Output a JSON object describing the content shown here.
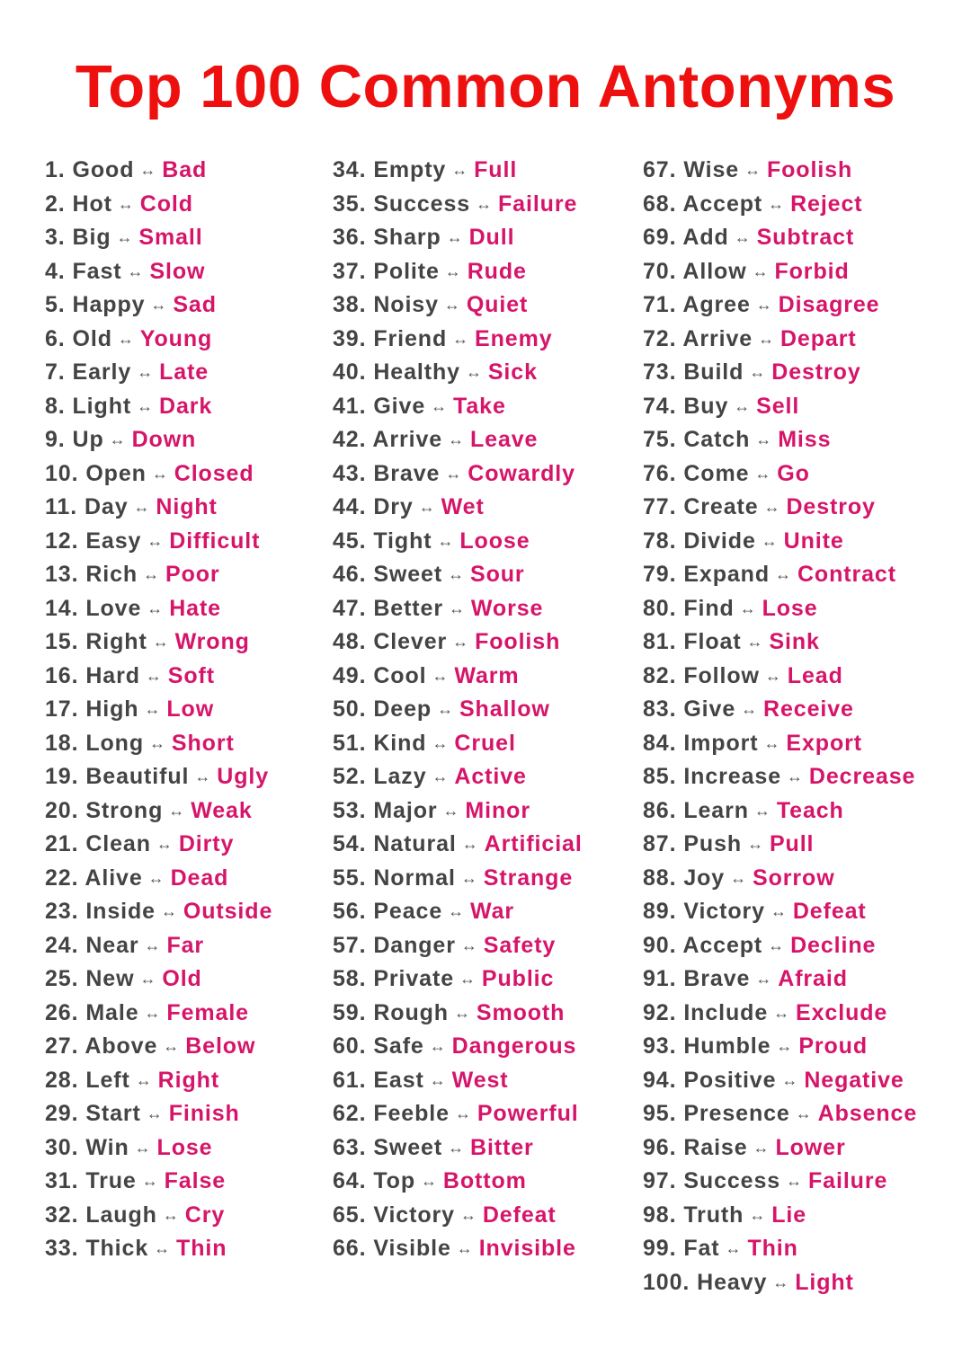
{
  "title": "Top 100 Common Antonyms",
  "colors": {
    "title": "#ee0f0f",
    "word": "#444444",
    "opposite": "#d6156a"
  },
  "separator": "↔",
  "columns": [
    [
      [
        "1.",
        "Good",
        "Bad"
      ],
      [
        "2.",
        "Hot",
        "Cold"
      ],
      [
        "3.",
        "Big",
        "Small"
      ],
      [
        "4.",
        "Fast",
        "Slow"
      ],
      [
        "5.",
        "Happy",
        "Sad"
      ],
      [
        "6.",
        "Old",
        "Young"
      ],
      [
        "7.",
        "Early",
        "Late"
      ],
      [
        "8.",
        "Light",
        "Dark"
      ],
      [
        "9.",
        "Up",
        "Down"
      ],
      [
        "10.",
        "Open",
        "Closed"
      ],
      [
        "11.",
        "Day",
        "Night"
      ],
      [
        "12.",
        "Easy",
        "Difficult"
      ],
      [
        "13.",
        "Rich",
        "Poor"
      ],
      [
        "14.",
        "Love",
        "Hate"
      ],
      [
        "15.",
        "Right",
        "Wrong"
      ],
      [
        "16.",
        "Hard",
        "Soft"
      ],
      [
        "17.",
        "High",
        "Low"
      ],
      [
        "18.",
        "Long",
        "Short"
      ],
      [
        "19.",
        "Beautiful",
        "Ugly"
      ],
      [
        "20.",
        "Strong",
        "Weak"
      ],
      [
        "21.",
        "Clean",
        "Dirty"
      ],
      [
        "22.",
        "Alive",
        "Dead"
      ],
      [
        "23.",
        "Inside",
        "Outside"
      ],
      [
        "24.",
        "Near",
        "Far"
      ],
      [
        "25.",
        "New",
        "Old"
      ],
      [
        "26.",
        "Male",
        "Female"
      ],
      [
        "27.",
        "Above",
        "Below"
      ],
      [
        "28.",
        "Left",
        "Right"
      ],
      [
        "29.",
        "Start",
        "Finish"
      ],
      [
        "30.",
        "Win",
        "Lose"
      ],
      [
        "31.",
        "True",
        "False"
      ],
      [
        "32.",
        "Laugh",
        "Cry"
      ],
      [
        "33.",
        "Thick",
        "Thin"
      ]
    ],
    [
      [
        "34.",
        "Empty",
        "Full"
      ],
      [
        "35.",
        "Success",
        "Failure"
      ],
      [
        "36.",
        "Sharp",
        "Dull"
      ],
      [
        "37.",
        "Polite",
        "Rude"
      ],
      [
        "38.",
        "Noisy",
        "Quiet"
      ],
      [
        "39.",
        "Friend",
        "Enemy"
      ],
      [
        "40.",
        "Healthy",
        "Sick"
      ],
      [
        "41.",
        "Give",
        "Take"
      ],
      [
        "42.",
        "Arrive",
        "Leave"
      ],
      [
        "43.",
        "Brave",
        "Cowardly"
      ],
      [
        "44.",
        "Dry",
        "Wet"
      ],
      [
        "45.",
        "Tight",
        "Loose"
      ],
      [
        "46.",
        "Sweet",
        "Sour"
      ],
      [
        "47.",
        "Better",
        "Worse"
      ],
      [
        "48.",
        "Clever",
        "Foolish"
      ],
      [
        "49.",
        "Cool",
        "Warm"
      ],
      [
        "50.",
        "Deep",
        "Shallow"
      ],
      [
        "51.",
        "Kind",
        "Cruel"
      ],
      [
        "52.",
        "Lazy",
        "Active"
      ],
      [
        "53.",
        "Major",
        "Minor"
      ],
      [
        "54.",
        "Natural",
        "Artificial"
      ],
      [
        "55.",
        "Normal",
        "Strange"
      ],
      [
        "56.",
        "Peace",
        "War"
      ],
      [
        "57.",
        "Danger",
        "Safety"
      ],
      [
        "58.",
        "Private",
        "Public"
      ],
      [
        "59.",
        "Rough",
        "Smooth"
      ],
      [
        "60.",
        "Safe",
        "Dangerous"
      ],
      [
        "61.",
        "East",
        "West"
      ],
      [
        "62.",
        "Feeble",
        "Powerful"
      ],
      [
        "63.",
        "Sweet",
        "Bitter"
      ],
      [
        "64.",
        "Top",
        "Bottom"
      ],
      [
        "65.",
        "Victory",
        "Defeat"
      ],
      [
        "66.",
        "Visible",
        "Invisible"
      ]
    ],
    [
      [
        "67.",
        "Wise",
        "Foolish"
      ],
      [
        "68.",
        "Accept",
        "Reject"
      ],
      [
        "69.",
        "Add",
        "Subtract"
      ],
      [
        "70.",
        "Allow",
        "Forbid"
      ],
      [
        "71.",
        "Agree",
        "Disagree"
      ],
      [
        "72.",
        "Arrive",
        "Depart"
      ],
      [
        "73.",
        "Build",
        "Destroy"
      ],
      [
        "74.",
        "Buy",
        "Sell"
      ],
      [
        "75.",
        "Catch",
        "Miss"
      ],
      [
        "76.",
        "Come",
        "Go"
      ],
      [
        "77.",
        "Create",
        "Destroy"
      ],
      [
        "78.",
        "Divide",
        "Unite"
      ],
      [
        "79.",
        "Expand",
        "Contract"
      ],
      [
        "80.",
        "Find",
        "Lose"
      ],
      [
        "81.",
        "Float",
        "Sink"
      ],
      [
        "82.",
        "Follow",
        "Lead"
      ],
      [
        "83.",
        "Give",
        "Receive"
      ],
      [
        "84.",
        "Import",
        "Export"
      ],
      [
        "85.",
        "Increase",
        "Decrease"
      ],
      [
        "86.",
        "Learn",
        "Teach"
      ],
      [
        "87.",
        "Push",
        "Pull"
      ],
      [
        "88.",
        "Joy",
        "Sorrow"
      ],
      [
        "89.",
        "Victory",
        "Defeat"
      ],
      [
        "90.",
        "Accept",
        "Decline"
      ],
      [
        "91.",
        "Brave",
        "Afraid"
      ],
      [
        "92.",
        "Include",
        "Exclude"
      ],
      [
        "93.",
        "Humble",
        "Proud"
      ],
      [
        "94.",
        "Positive",
        "Negative"
      ],
      [
        "95.",
        "Presence",
        "Absence"
      ],
      [
        "96.",
        "Raise",
        "Lower"
      ],
      [
        "97.",
        "Success",
        "Failure"
      ],
      [
        "98.",
        "Truth",
        "Lie"
      ],
      [
        "99.",
        "Fat",
        "Thin"
      ],
      [
        "100.",
        "Heavy",
        "Light"
      ]
    ]
  ]
}
